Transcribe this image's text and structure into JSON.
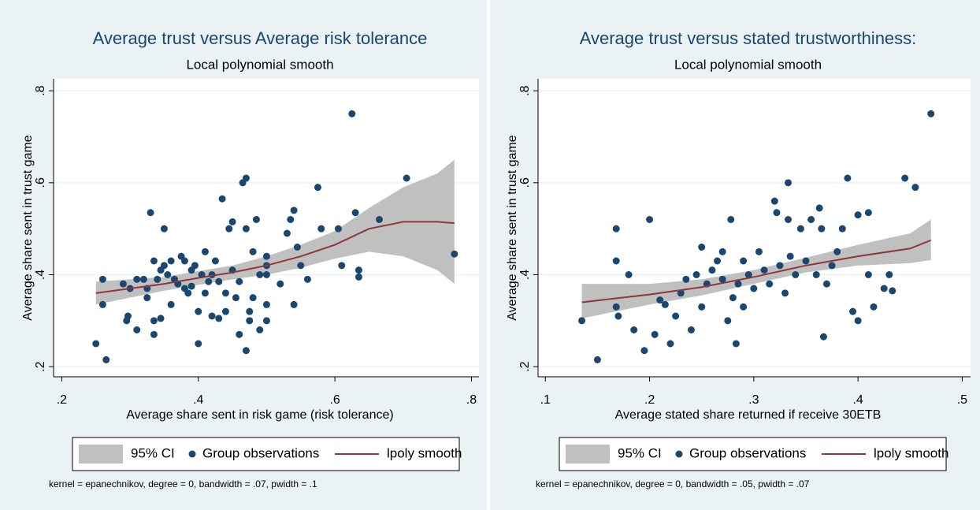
{
  "chart_data": [
    {
      "type": "scatter",
      "title": "Average trust versus Average risk tolerance",
      "subtitle": "Local polynomial smooth",
      "xlabel": "Average share sent in risk game (risk tolerance)",
      "ylabel": "Average share sent in trust game",
      "note": "kernel = epanechnikov, degree = 0, bandwidth = .07, pwidth = .1",
      "xlim": [
        0.188,
        0.811
      ],
      "ylim": [
        0.178,
        0.826
      ],
      "xticks": [
        {
          "value": 0.2,
          "label": ".2"
        },
        {
          "value": 0.4,
          "label": ".4"
        },
        {
          "value": 0.6,
          "label": ".6"
        },
        {
          "value": 0.8,
          "label": ".8"
        }
      ],
      "yticks": [
        {
          "value": 0.2,
          "label": ".2"
        },
        {
          "value": 0.4,
          "label": ".4"
        },
        {
          "value": 0.6,
          "label": ".6"
        },
        {
          "value": 0.8,
          "label": ".8"
        }
      ],
      "grid": true,
      "series": [
        {
          "name": "95% CI",
          "style": "band",
          "color": "#c0c0c0",
          "x": [
            0.25,
            0.3,
            0.35,
            0.4,
            0.45,
            0.5,
            0.55,
            0.6,
            0.65,
            0.7,
            0.75,
            0.775
          ],
          "lower": [
            0.335,
            0.35,
            0.365,
            0.378,
            0.39,
            0.4,
            0.415,
            0.435,
            0.45,
            0.44,
            0.41,
            0.38
          ],
          "upper": [
            0.385,
            0.39,
            0.395,
            0.408,
            0.42,
            0.44,
            0.465,
            0.495,
            0.545,
            0.59,
            0.62,
            0.65
          ]
        },
        {
          "name": "Group observations",
          "style": "points",
          "color": "#1a476f",
          "x": [
            0.25,
            0.265,
            0.26,
            0.26,
            0.29,
            0.295,
            0.297,
            0.3,
            0.31,
            0.31,
            0.32,
            0.325,
            0.325,
            0.33,
            0.335,
            0.335,
            0.335,
            0.34,
            0.345,
            0.345,
            0.35,
            0.35,
            0.355,
            0.36,
            0.36,
            0.365,
            0.37,
            0.375,
            0.38,
            0.38,
            0.385,
            0.39,
            0.39,
            0.395,
            0.4,
            0.4,
            0.405,
            0.41,
            0.41,
            0.415,
            0.42,
            0.42,
            0.425,
            0.43,
            0.43,
            0.435,
            0.44,
            0.44,
            0.445,
            0.45,
            0.45,
            0.455,
            0.46,
            0.46,
            0.465,
            0.47,
            0.47,
            0.47,
            0.475,
            0.475,
            0.48,
            0.48,
            0.485,
            0.49,
            0.49,
            0.5,
            0.5,
            0.5,
            0.5,
            0.5,
            0.52,
            0.53,
            0.535,
            0.54,
            0.54,
            0.545,
            0.55,
            0.56,
            0.575,
            0.58,
            0.605,
            0.61,
            0.625,
            0.63,
            0.635,
            0.635,
            0.665,
            0.705,
            0.775
          ],
          "values": [
            0.25,
            0.215,
            0.39,
            0.335,
            0.38,
            0.3,
            0.31,
            0.37,
            0.39,
            0.28,
            0.39,
            0.37,
            0.35,
            0.535,
            0.43,
            0.3,
            0.27,
            0.39,
            0.41,
            0.305,
            0.5,
            0.42,
            0.4,
            0.43,
            0.335,
            0.39,
            0.38,
            0.44,
            0.43,
            0.37,
            0.36,
            0.41,
            0.375,
            0.42,
            0.25,
            0.32,
            0.4,
            0.36,
            0.45,
            0.385,
            0.31,
            0.4,
            0.43,
            0.385,
            0.305,
            0.565,
            0.36,
            0.32,
            0.5,
            0.515,
            0.41,
            0.35,
            0.27,
            0.385,
            0.6,
            0.61,
            0.5,
            0.235,
            0.32,
            0.3,
            0.35,
            0.45,
            0.52,
            0.28,
            0.4,
            0.44,
            0.42,
            0.4,
            0.3,
            0.335,
            0.38,
            0.49,
            0.52,
            0.54,
            0.335,
            0.46,
            0.42,
            0.39,
            0.59,
            0.5,
            0.5,
            0.42,
            0.75,
            0.535,
            0.41,
            0.395,
            0.52,
            0.61,
            0.445
          ]
        },
        {
          "name": "lpoly smooth",
          "style": "line",
          "color": "#90353b",
          "x": [
            0.25,
            0.3,
            0.35,
            0.4,
            0.45,
            0.5,
            0.55,
            0.6,
            0.65,
            0.7,
            0.75,
            0.775
          ],
          "values": [
            0.36,
            0.37,
            0.38,
            0.393,
            0.405,
            0.42,
            0.44,
            0.465,
            0.5,
            0.515,
            0.515,
            0.512
          ]
        }
      ]
    },
    {
      "type": "scatter",
      "title": "Average trust versus stated trustworthiness:",
      "subtitle": "Local polynomial smooth",
      "xlabel": "Average stated share returned if receive 30ETB",
      "ylabel": "Average share sent in trust game",
      "note": "kernel = epanechnikov, degree = 0, bandwidth = .05, pwidth = .07",
      "xlim": [
        0.093,
        0.508
      ],
      "ylim": [
        0.178,
        0.826
      ],
      "xticks": [
        {
          "value": 0.1,
          "label": ".1"
        },
        {
          "value": 0.2,
          "label": ".2"
        },
        {
          "value": 0.3,
          "label": ".3"
        },
        {
          "value": 0.4,
          "label": ".4"
        },
        {
          "value": 0.5,
          "label": ".5"
        }
      ],
      "yticks": [
        {
          "value": 0.2,
          "label": ".2"
        },
        {
          "value": 0.4,
          "label": ".4"
        },
        {
          "value": 0.6,
          "label": ".6"
        },
        {
          "value": 0.8,
          "label": ".8"
        }
      ],
      "grid": true,
      "series": [
        {
          "name": "95% CI",
          "style": "band",
          "color": "#c0c0c0",
          "x": [
            0.135,
            0.2,
            0.25,
            0.3,
            0.35,
            0.4,
            0.45,
            0.47
          ],
          "lower": [
            0.305,
            0.335,
            0.355,
            0.38,
            0.405,
            0.42,
            0.425,
            0.432
          ],
          "upper": [
            0.38,
            0.38,
            0.39,
            0.41,
            0.437,
            0.465,
            0.49,
            0.52
          ]
        },
        {
          "name": "Group observations",
          "style": "points",
          "color": "#1a476f",
          "x": [
            0.135,
            0.15,
            0.168,
            0.168,
            0.168,
            0.17,
            0.18,
            0.185,
            0.195,
            0.2,
            0.205,
            0.21,
            0.215,
            0.22,
            0.225,
            0.23,
            0.235,
            0.24,
            0.245,
            0.25,
            0.25,
            0.255,
            0.26,
            0.265,
            0.27,
            0.27,
            0.275,
            0.278,
            0.28,
            0.283,
            0.285,
            0.29,
            0.29,
            0.295,
            0.3,
            0.305,
            0.31,
            0.315,
            0.32,
            0.322,
            0.325,
            0.33,
            0.333,
            0.333,
            0.335,
            0.34,
            0.345,
            0.35,
            0.355,
            0.36,
            0.363,
            0.365,
            0.367,
            0.37,
            0.375,
            0.38,
            0.385,
            0.39,
            0.395,
            0.4,
            0.4,
            0.41,
            0.41,
            0.415,
            0.425,
            0.43,
            0.433,
            0.445,
            0.455,
            0.47
          ],
          "values": [
            0.3,
            0.215,
            0.5,
            0.43,
            0.33,
            0.31,
            0.4,
            0.28,
            0.235,
            0.52,
            0.27,
            0.345,
            0.335,
            0.25,
            0.31,
            0.36,
            0.39,
            0.28,
            0.4,
            0.46,
            0.33,
            0.38,
            0.41,
            0.43,
            0.45,
            0.39,
            0.3,
            0.52,
            0.35,
            0.25,
            0.38,
            0.43,
            0.33,
            0.4,
            0.37,
            0.45,
            0.41,
            0.38,
            0.56,
            0.535,
            0.42,
            0.36,
            0.6,
            0.52,
            0.44,
            0.4,
            0.5,
            0.43,
            0.52,
            0.4,
            0.545,
            0.5,
            0.265,
            0.38,
            0.42,
            0.45,
            0.5,
            0.61,
            0.32,
            0.3,
            0.53,
            0.4,
            0.535,
            0.33,
            0.37,
            0.4,
            0.365,
            0.61,
            0.59,
            0.75
          ]
        },
        {
          "name": "lpoly smooth",
          "style": "line",
          "color": "#90353b",
          "x": [
            0.135,
            0.2,
            0.25,
            0.3,
            0.35,
            0.4,
            0.45,
            0.47
          ],
          "values": [
            0.34,
            0.357,
            0.373,
            0.395,
            0.42,
            0.44,
            0.457,
            0.475
          ]
        }
      ]
    }
  ]
}
